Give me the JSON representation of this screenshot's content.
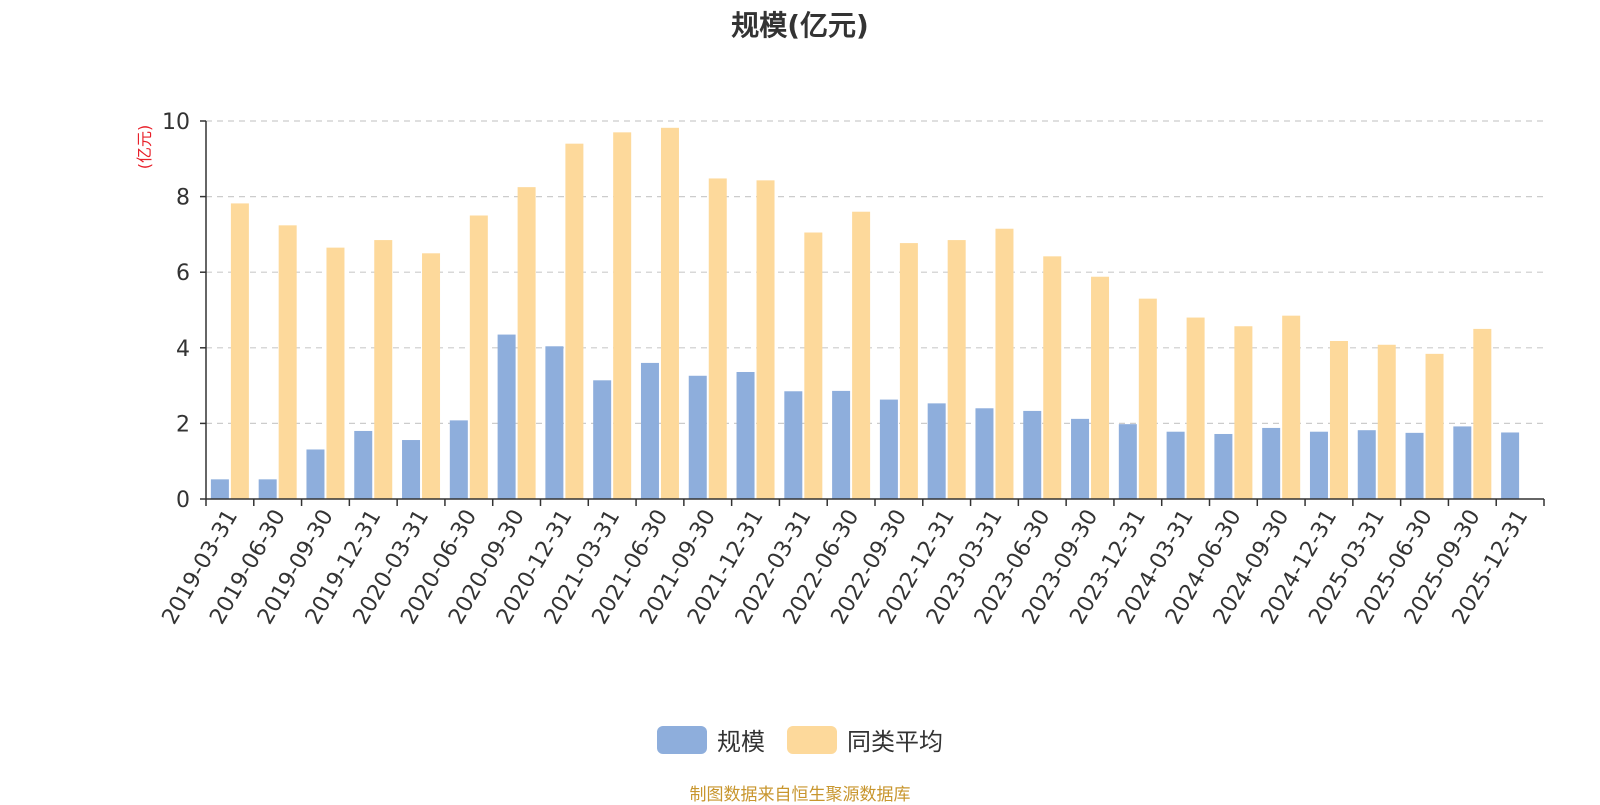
{
  "chart_data": {
    "type": "bar",
    "title": "规模(亿元)",
    "ylabel": "(亿元)",
    "ylim": [
      0,
      10
    ],
    "yticks": [
      0,
      2,
      4,
      6,
      8,
      10
    ],
    "grid": true,
    "legend_position": "bottom-center",
    "categories": [
      "2019-03-31",
      "2019-06-30",
      "2019-09-30",
      "2019-12-31",
      "2020-03-31",
      "2020-06-30",
      "2020-09-30",
      "2020-12-31",
      "2021-03-31",
      "2021-06-30",
      "2021-09-30",
      "2021-12-31",
      "2022-03-31",
      "2022-06-30",
      "2022-09-30",
      "2022-12-31",
      "2023-03-31",
      "2023-06-30",
      "2023-09-30",
      "2023-12-31",
      "2024-03-31",
      "2024-06-30",
      "2024-09-30",
      "2024-12-31",
      "2025-03-31",
      "2025-06-30",
      "2025-09-30",
      "2025-12-31"
    ],
    "series": [
      {
        "name": "规模",
        "color": "#8eaedc",
        "values": [
          0.52,
          0.52,
          1.31,
          1.8,
          1.56,
          2.08,
          4.35,
          4.04,
          3.14,
          3.6,
          3.26,
          3.36,
          2.85,
          2.86,
          2.63,
          2.53,
          2.4,
          2.33,
          2.12,
          1.98,
          1.78,
          1.72,
          1.88,
          1.78,
          1.82,
          1.75,
          1.92,
          1.76
        ]
      },
      {
        "name": "同类平均",
        "color": "#fdd99b",
        "values": [
          7.82,
          7.24,
          6.65,
          6.85,
          6.5,
          7.5,
          8.25,
          9.4,
          9.7,
          9.82,
          8.48,
          8.43,
          7.05,
          7.6,
          6.77,
          6.85,
          7.15,
          6.42,
          5.88,
          5.3,
          4.8,
          4.57,
          4.85,
          4.18,
          4.08,
          3.84,
          4.5,
          null
        ]
      }
    ]
  },
  "footer": {
    "source": "制图数据来自恒生聚源数据库"
  }
}
